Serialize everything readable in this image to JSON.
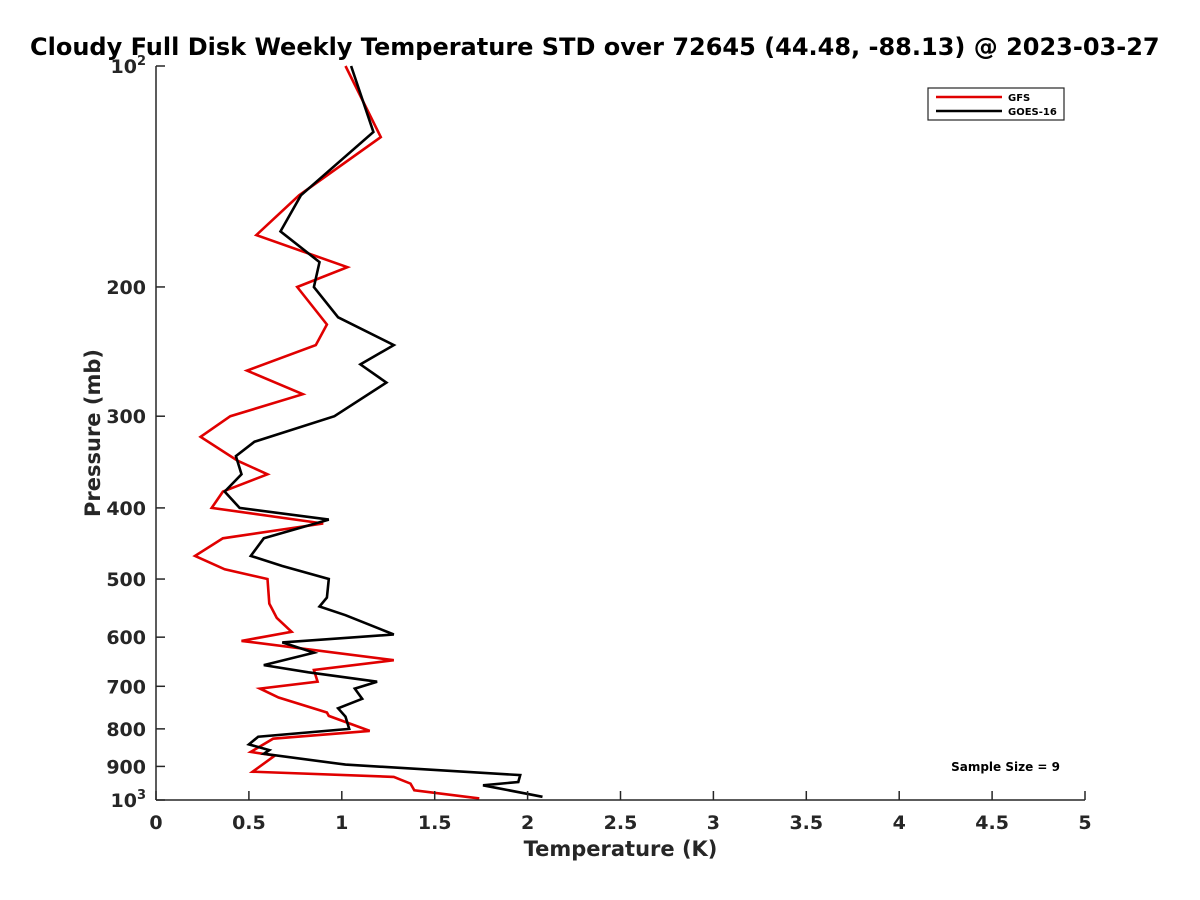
{
  "chart_data": {
    "type": "line",
    "title": "Cloudy Full Disk Weekly Temperature STD over 72645 (44.48, -88.13) @ 2023-03-27",
    "xlabel": "Temperature (K)",
    "ylabel": "Pressure (mb)",
    "xlim": [
      0,
      5
    ],
    "ylim": [
      100,
      1000
    ],
    "y_scale": "log",
    "y_reversed": true,
    "x_ticks": [
      "0",
      "0.5",
      "1",
      "1.5",
      "2",
      "2.5",
      "3",
      "3.5",
      "4",
      "4.5",
      "5"
    ],
    "y_ticks": [
      {
        "value": 100,
        "base": "10",
        "exp": "2"
      },
      {
        "value": 200,
        "label": "200"
      },
      {
        "value": 300,
        "label": "300"
      },
      {
        "value": 400,
        "label": "400"
      },
      {
        "value": 500,
        "label": "500"
      },
      {
        "value": 600,
        "label": "600"
      },
      {
        "value": 700,
        "label": "700"
      },
      {
        "value": 800,
        "label": "800"
      },
      {
        "value": 900,
        "label": "900"
      },
      {
        "value": 1000,
        "base": "10",
        "exp": "3"
      }
    ],
    "grid": false,
    "legend_position": "top-right",
    "annotation": "Sample Size = 9",
    "series": [
      {
        "name": "GFS",
        "color": "#e00000",
        "points": [
          [
            1.02,
            100
          ],
          [
            1.21,
            125
          ],
          [
            0.77,
            150
          ],
          [
            0.54,
            170
          ],
          [
            1.03,
            188
          ],
          [
            0.76,
            200
          ],
          [
            0.92,
            225
          ],
          [
            0.86,
            240
          ],
          [
            0.49,
            260
          ],
          [
            0.79,
            280
          ],
          [
            0.4,
            300
          ],
          [
            0.24,
            320
          ],
          [
            0.44,
            345
          ],
          [
            0.6,
            360
          ],
          [
            0.36,
            380
          ],
          [
            0.3,
            400
          ],
          [
            0.9,
            420
          ],
          [
            0.36,
            440
          ],
          [
            0.21,
            465
          ],
          [
            0.37,
            485
          ],
          [
            0.6,
            500
          ],
          [
            0.61,
            540
          ],
          [
            0.65,
            565
          ],
          [
            0.73,
            590
          ],
          [
            0.46,
            607
          ],
          [
            1.28,
            645
          ],
          [
            0.85,
            665
          ],
          [
            0.87,
            690
          ],
          [
            0.56,
            705
          ],
          [
            0.66,
            725
          ],
          [
            0.92,
            760
          ],
          [
            0.93,
            768
          ],
          [
            1.15,
            805
          ],
          [
            0.63,
            825
          ],
          [
            0.51,
            860
          ],
          [
            0.64,
            870
          ],
          [
            0.52,
            915
          ],
          [
            1.28,
            930
          ],
          [
            1.37,
            950
          ],
          [
            1.39,
            970
          ],
          [
            1.74,
            995
          ]
        ]
      },
      {
        "name": "GOES-16",
        "color": "#000000",
        "points": [
          [
            1.05,
            100
          ],
          [
            1.17,
            123
          ],
          [
            0.78,
            150
          ],
          [
            0.67,
            168
          ],
          [
            0.88,
            185
          ],
          [
            0.85,
            200
          ],
          [
            0.98,
            220
          ],
          [
            1.28,
            240
          ],
          [
            1.1,
            255
          ],
          [
            1.24,
            270
          ],
          [
            0.96,
            300
          ],
          [
            0.53,
            325
          ],
          [
            0.43,
            340
          ],
          [
            0.46,
            360
          ],
          [
            0.37,
            380
          ],
          [
            0.45,
            400
          ],
          [
            0.93,
            415
          ],
          [
            0.58,
            440
          ],
          [
            0.51,
            465
          ],
          [
            0.68,
            480
          ],
          [
            0.93,
            500
          ],
          [
            0.92,
            530
          ],
          [
            0.88,
            545
          ],
          [
            1.02,
            560
          ],
          [
            1.28,
            595
          ],
          [
            0.68,
            610
          ],
          [
            0.85,
            630
          ],
          [
            0.58,
            655
          ],
          [
            0.82,
            670
          ],
          [
            1.19,
            690
          ],
          [
            1.07,
            705
          ],
          [
            1.11,
            728
          ],
          [
            0.98,
            750
          ],
          [
            1.02,
            770
          ],
          [
            1.04,
            800
          ],
          [
            0.55,
            820
          ],
          [
            0.5,
            840
          ],
          [
            0.61,
            855
          ],
          [
            0.58,
            865
          ],
          [
            1.02,
            895
          ],
          [
            1.96,
            925
          ],
          [
            1.95,
            945
          ],
          [
            1.76,
            955
          ],
          [
            2.08,
            990
          ]
        ]
      }
    ]
  }
}
